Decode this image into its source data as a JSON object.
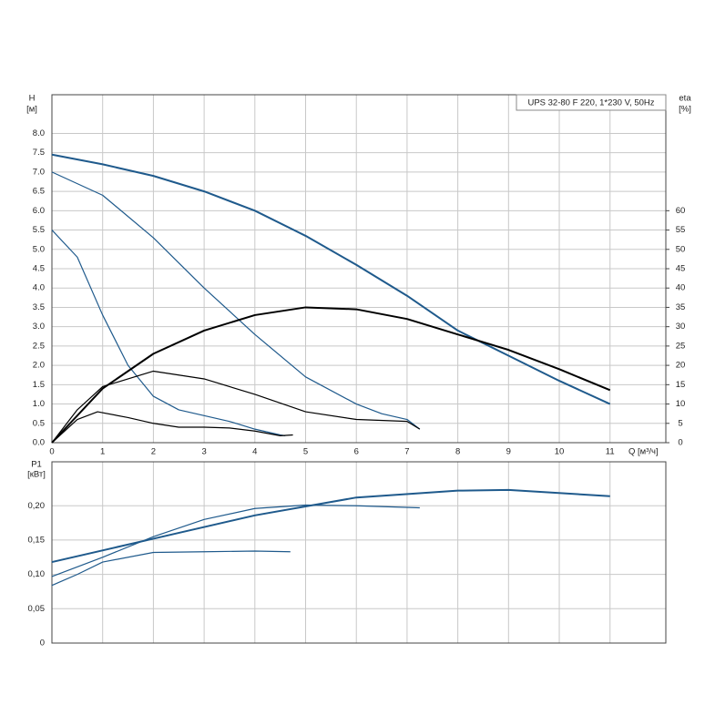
{
  "chart_data": [
    {
      "type": "line",
      "title": "UPS 32-80 F 220, 1*230 V, 50Hz",
      "y_label": "H",
      "y_unit": "[м]",
      "y2_label": "eta",
      "y2_unit": "[%]",
      "x_label": "Q [м³/ч]",
      "xlim": [
        0,
        12.1
      ],
      "ylim": [
        0,
        9
      ],
      "y2lim": [
        0,
        90
      ],
      "grid": true,
      "xticks": [
        0,
        1,
        2,
        3,
        4,
        5,
        6,
        7,
        8,
        9,
        10,
        11
      ],
      "yticks": [
        {
          "value": 0,
          "label": "0.0"
        },
        0.5,
        {
          "value": 1,
          "label": "1.0"
        },
        1.5,
        {
          "value": 2,
          "label": "2.0"
        },
        2.5,
        {
          "value": 3,
          "label": "3.0"
        },
        3.5,
        {
          "value": 4,
          "label": "4.0"
        },
        4.5,
        {
          "value": 5,
          "label": "5.0"
        },
        5.5,
        {
          "value": 6,
          "label": "6.0"
        },
        6.5,
        {
          "value": 7,
          "label": "7.0"
        },
        7.5,
        {
          "value": 8,
          "label": "8.0"
        }
      ],
      "y2ticks": [
        0,
        5,
        10,
        15,
        20,
        25,
        30,
        35,
        40,
        45,
        50,
        55,
        60
      ],
      "series": [
        {
          "color": "#1f5a8c",
          "line_width": 2,
          "x": [
            0,
            1,
            2,
            3,
            4,
            5,
            6,
            7,
            8,
            9,
            10,
            11
          ],
          "values": [
            7.45,
            7.2,
            6.9,
            6.5,
            6.0,
            5.35,
            4.6,
            3.8,
            2.9,
            2.25,
            1.6,
            1.0
          ]
        },
        {
          "color": "#1f5a8c",
          "line_width": 1.2,
          "x": [
            0,
            1,
            2,
            3,
            4,
            5,
            6,
            6.5,
            7,
            7.25
          ],
          "values": [
            7.0,
            6.4,
            5.3,
            4.0,
            2.8,
            1.7,
            1.0,
            0.75,
            0.6,
            0.35
          ]
        },
        {
          "color": "#1f5a8c",
          "line_width": 1.2,
          "x": [
            0,
            0.5,
            1,
            1.5,
            2,
            2.5,
            3,
            3.5,
            4,
            4.5,
            4.6
          ],
          "values": [
            5.5,
            4.8,
            3.3,
            2.0,
            1.2,
            0.85,
            0.7,
            0.55,
            0.35,
            0.2,
            0.18
          ]
        },
        {
          "color": "#000000",
          "line_width": 2,
          "axis": "y2",
          "x": [
            0,
            1,
            2,
            3,
            4,
            5,
            6,
            7,
            8,
            9,
            10,
            11
          ],
          "values": [
            0,
            14,
            23,
            29,
            33,
            35,
            34.5,
            32,
            28,
            24,
            19,
            13.6
          ]
        },
        {
          "color": "#000000",
          "line_width": 1.2,
          "axis": "y2",
          "x": [
            0,
            0.5,
            1,
            2,
            3,
            4,
            5,
            6,
            7,
            7.25
          ],
          "values": [
            0,
            8.5,
            14.5,
            18.5,
            16.5,
            12.5,
            8,
            6,
            5.5,
            3.5
          ]
        },
        {
          "color": "#000000",
          "line_width": 1.2,
          "axis": "y2",
          "x": [
            0,
            0.5,
            0.9,
            1.5,
            2,
            2.5,
            3,
            3.5,
            4,
            4.5,
            4.75
          ],
          "values": [
            0,
            6,
            8,
            6.5,
            5,
            4,
            4,
            3.8,
            3,
            1.8,
            2
          ]
        }
      ]
    },
    {
      "type": "line",
      "y_label": "P1",
      "y_unit": "[кВт]",
      "xlim": [
        0,
        12.1
      ],
      "ylim": [
        0,
        0.264
      ],
      "grid": true,
      "yticks": [
        0,
        {
          "value": 0.05,
          "label": "0,05"
        },
        {
          "value": 0.1,
          "label": "0,10"
        },
        {
          "value": 0.15,
          "label": "0,15"
        },
        {
          "value": 0.2,
          "label": "0,20"
        }
      ],
      "series": [
        {
          "color": "#1f5a8c",
          "line_width": 2,
          "x": [
            0,
            2,
            4,
            6,
            8,
            9,
            11
          ],
          "values": [
            0.118,
            0.152,
            0.186,
            0.212,
            0.222,
            0.223,
            0.214
          ]
        },
        {
          "color": "#1f5a8c",
          "line_width": 1.2,
          "x": [
            0,
            1,
            2,
            3,
            4,
            5,
            6,
            7.25
          ],
          "values": [
            0.097,
            0.125,
            0.155,
            0.18,
            0.196,
            0.201,
            0.2,
            0.197
          ]
        },
        {
          "color": "#1f5a8c",
          "line_width": 1.2,
          "x": [
            0,
            0.5,
            1,
            2,
            3,
            4,
            4.7
          ],
          "values": [
            0.084,
            0.1,
            0.118,
            0.132,
            0.133,
            0.134,
            0.133
          ]
        }
      ]
    }
  ]
}
